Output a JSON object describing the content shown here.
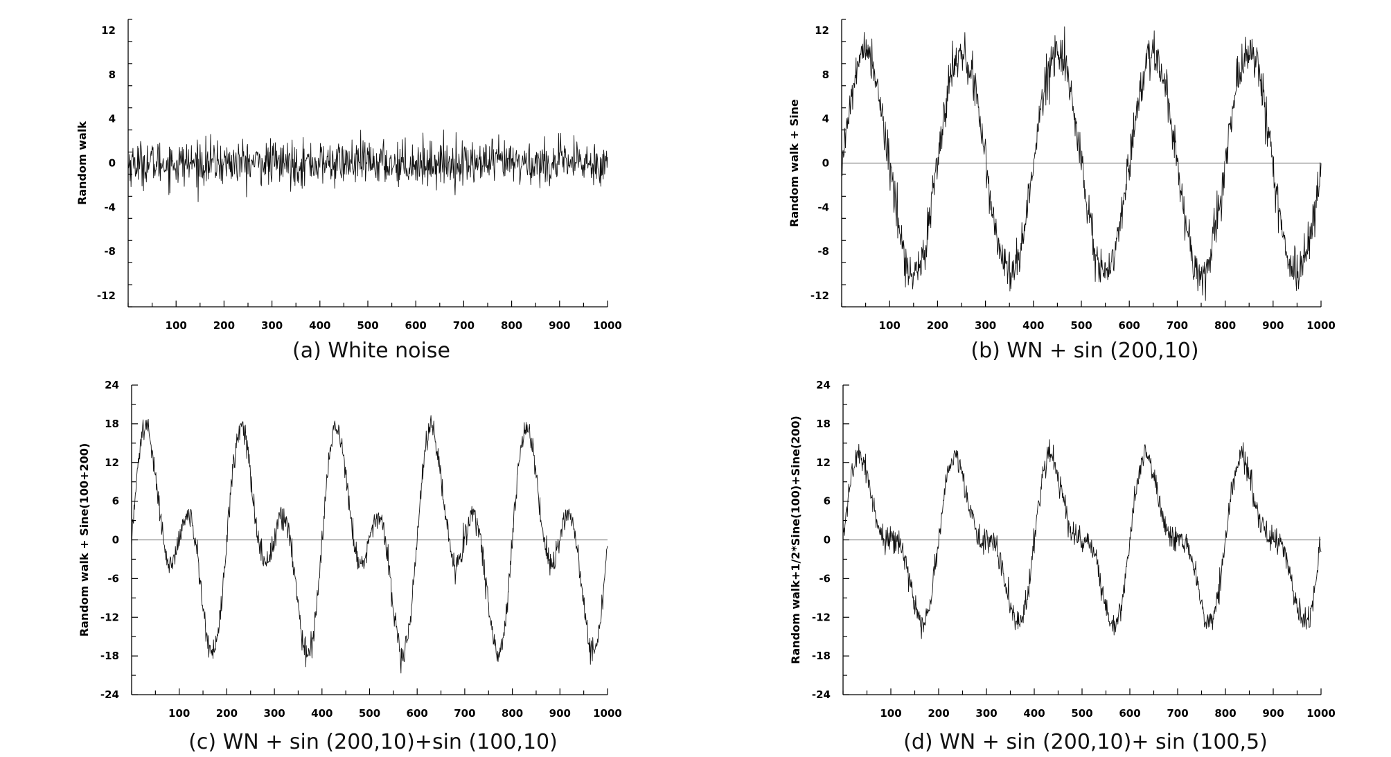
{
  "chart_data": [
    {
      "id": "a",
      "type": "line",
      "caption": "(a) White noise",
      "ylabel": "Random walk",
      "xlim": [
        0,
        1000
      ],
      "ylim": [
        -13,
        13
      ],
      "xticks": [
        100,
        200,
        300,
        400,
        500,
        600,
        700,
        800,
        900,
        1000
      ],
      "yticks": [
        12,
        8,
        4,
        0,
        -4,
        -8,
        -12
      ],
      "zero_line": false,
      "series": [
        {
          "components": [],
          "noise_amplitude": 1.0
        }
      ]
    },
    {
      "id": "b",
      "type": "line",
      "caption": "(b) WN + sin (200,10)",
      "ylabel": "Random walk + Sine",
      "xlim": [
        0,
        1000
      ],
      "ylim": [
        -13,
        13
      ],
      "xticks": [
        100,
        200,
        300,
        400,
        500,
        600,
        700,
        800,
        900,
        1000
      ],
      "yticks": [
        12,
        8,
        4,
        0,
        -4,
        -8,
        -12
      ],
      "zero_line": true,
      "series": [
        {
          "components": [
            {
              "period": 200,
              "amplitude": 10
            }
          ],
          "noise_amplitude": 1.0
        }
      ]
    },
    {
      "id": "c",
      "type": "line",
      "caption": "(c) WN + sin (200,10)+sin (100,10)",
      "ylabel": "Random walk + Sine(100+200)",
      "xlim": [
        0,
        1000
      ],
      "ylim": [
        -24,
        24
      ],
      "xticks": [
        100,
        200,
        300,
        400,
        500,
        600,
        700,
        800,
        900,
        1000
      ],
      "yticks": [
        24,
        18,
        12,
        6,
        0,
        -6,
        -12,
        -18,
        -24
      ],
      "zero_line": true,
      "series": [
        {
          "components": [
            {
              "period": 200,
              "amplitude": 10
            },
            {
              "period": 100,
              "amplitude": 10
            }
          ],
          "noise_amplitude": 1.0
        }
      ]
    },
    {
      "id": "d",
      "type": "line",
      "caption": "(d) WN + sin (200,10)+ sin (100,5)",
      "ylabel": "Random walk+1/2*Sine(100)+Sine(200)",
      "xlim": [
        0,
        1000
      ],
      "ylim": [
        -24,
        24
      ],
      "xticks": [
        100,
        200,
        300,
        400,
        500,
        600,
        700,
        800,
        900,
        1000
      ],
      "yticks": [
        24,
        18,
        12,
        6,
        0,
        -6,
        -12,
        -18,
        -24
      ],
      "zero_line": true,
      "series": [
        {
          "components": [
            {
              "period": 200,
              "amplitude": 10
            },
            {
              "period": 100,
              "amplitude": 5
            }
          ],
          "noise_amplitude": 1.0
        }
      ]
    }
  ]
}
